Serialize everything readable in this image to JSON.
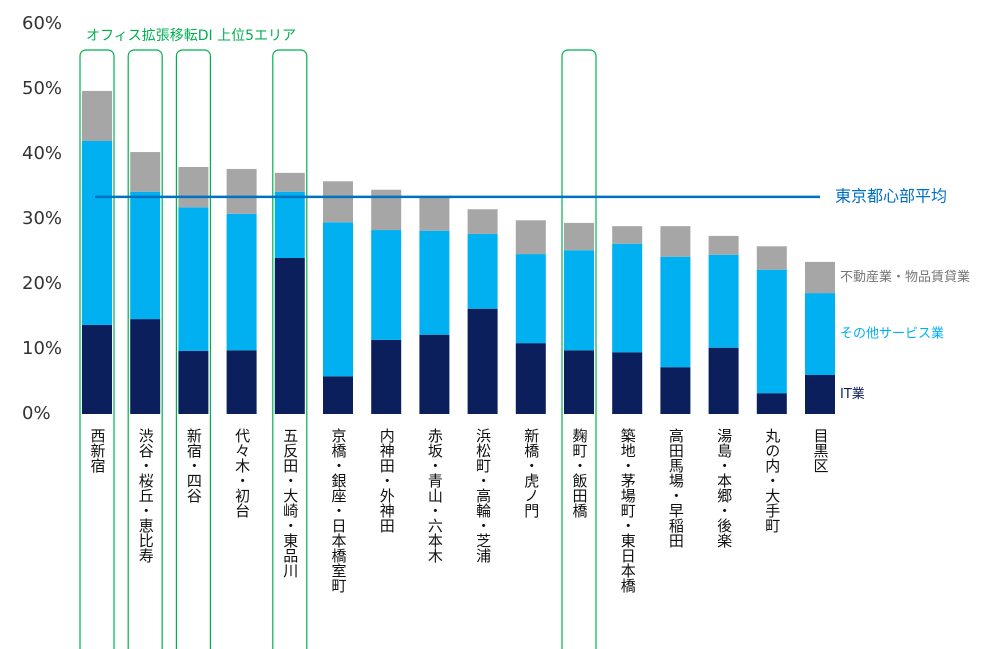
{
  "chart_data": {
    "type": "stacked_bar",
    "annotation": "オフィス拡張移転DI 上位5エリア",
    "highlight": [
      0,
      1,
      2,
      4,
      10
    ],
    "categories": [
      "西新宿",
      "渋谷・桜丘・恵比寿",
      "新宿・四谷",
      "代々木・初台",
      "五反田・大崎・東品川",
      "京橋・銀座・日本橋室町",
      "内神田・外神田",
      "赤坂・青山・六本木",
      "浜松町・高輪・芝浦",
      "新橋・虎ノ門",
      "麹町・飯田橋",
      "築地・茅場町・東日本橋",
      "高田馬場・早稲田",
      "湯島・本郷・後楽",
      "丸の内・大手町",
      "目黒区"
    ],
    "series": [
      {
        "name": "IT業",
        "color": "#0b1f5c",
        "values": [
          13.7,
          14.6,
          9.7,
          9.8,
          24.0,
          5.8,
          11.4,
          12.2,
          16.2,
          10.9,
          9.8,
          9.5,
          7.2,
          10.2,
          3.2,
          6.0
        ]
      },
      {
        "name": "その他サービス業",
        "color": "#00b0f0",
        "values": [
          28.3,
          19.6,
          22.1,
          21.0,
          10.2,
          23.7,
          16.9,
          16.0,
          11.5,
          13.7,
          15.4,
          16.7,
          17.0,
          14.3,
          19.0,
          12.6
        ]
      },
      {
        "name": "不動産業・物品賃貸業",
        "color": "#a6a6a6",
        "values": [
          7.7,
          6.1,
          6.2,
          6.9,
          2.9,
          6.3,
          6.2,
          5.3,
          3.8,
          5.2,
          4.2,
          2.7,
          4.7,
          2.9,
          3.6,
          4.8
        ]
      }
    ],
    "reference_line": {
      "label": "東京都心部平均",
      "value": 33.4,
      "color": "#0070c0"
    },
    "highlight_color": "#00b050",
    "ylim": [
      0,
      60
    ],
    "yticks": [
      {
        "value": 0,
        "label": "0%"
      },
      {
        "value": 10,
        "label": "10%"
      },
      {
        "value": 20,
        "label": "20%"
      },
      {
        "value": 30,
        "label": "30%"
      },
      {
        "value": 40,
        "label": "40%"
      },
      {
        "value": 50,
        "label": "50%"
      },
      {
        "value": 60,
        "label": "60%"
      }
    ]
  }
}
